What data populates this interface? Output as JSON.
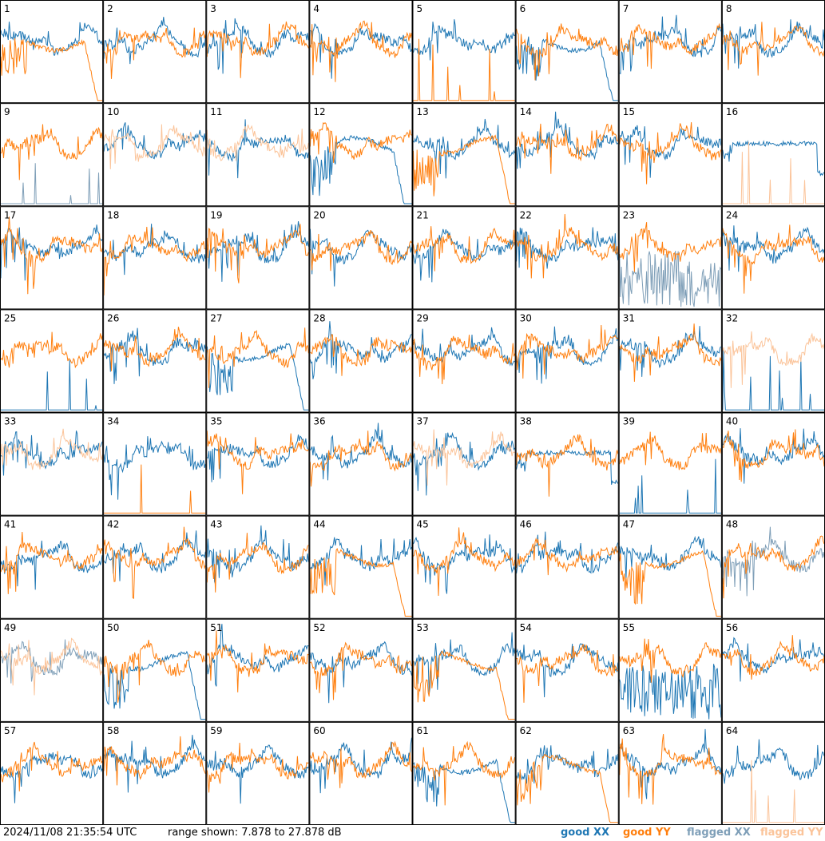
{
  "footer": {
    "timestamp": "2024/11/08 21:35:54 UTC",
    "range_text": "range shown: 7.878 to 27.878 dB"
  },
  "legend": {
    "good_xx": "good XX",
    "good_yy": "good YY",
    "flagged_xx": "flagged XX",
    "flagged_yy": "flagged YY"
  },
  "colors": {
    "good_xx": "#1f77b4",
    "good_yy": "#ff7f0e",
    "flagged_xx": "#7f9fb8",
    "flagged_yy": "#fbc49a",
    "grid": "#000000"
  },
  "chart_data": {
    "type": "line",
    "grid": "8x8 small multiples",
    "ylim": [
      7.878,
      27.878
    ],
    "tiles": [
      {
        "id": 1,
        "xx": "good",
        "yy": "good",
        "xx_shape": "normal",
        "yy_shape": "rolloff"
      },
      {
        "id": 2,
        "xx": "good",
        "yy": "good",
        "xx_shape": "normal",
        "yy_shape": "normal"
      },
      {
        "id": 3,
        "xx": "good",
        "yy": "good",
        "xx_shape": "normal",
        "yy_shape": "normal"
      },
      {
        "id": 4,
        "xx": "good",
        "yy": "good",
        "xx_shape": "normal",
        "yy_shape": "normal"
      },
      {
        "id": 5,
        "xx": "good",
        "yy": "good",
        "xx_shape": "normal",
        "yy_shape": "dead"
      },
      {
        "id": 6,
        "xx": "good",
        "yy": "good",
        "xx_shape": "rolloff",
        "yy_shape": "normal"
      },
      {
        "id": 7,
        "xx": "good",
        "yy": "good",
        "xx_shape": "normal",
        "yy_shape": "normal"
      },
      {
        "id": 8,
        "xx": "good",
        "yy": "good",
        "xx_shape": "normal",
        "yy_shape": "normal"
      },
      {
        "id": 9,
        "xx": "flagged",
        "yy": "good",
        "xx_shape": "dead",
        "yy_shape": "normal"
      },
      {
        "id": 10,
        "xx": "good",
        "yy": "flagged",
        "xx_shape": "normal",
        "yy_shape": "normal"
      },
      {
        "id": 11,
        "xx": "good",
        "yy": "flagged",
        "xx_shape": "normal",
        "yy_shape": "normal"
      },
      {
        "id": 12,
        "xx": "good",
        "yy": "good",
        "xx_shape": "rolloff",
        "yy_shape": "normal"
      },
      {
        "id": 13,
        "xx": "good",
        "yy": "good",
        "xx_shape": "normal",
        "yy_shape": "rolloff"
      },
      {
        "id": 14,
        "xx": "good",
        "yy": "good",
        "xx_shape": "normal",
        "yy_shape": "normal"
      },
      {
        "id": 15,
        "xx": "good",
        "yy": "good",
        "xx_shape": "normal",
        "yy_shape": "normal"
      },
      {
        "id": 16,
        "xx": "good",
        "yy": "flagged",
        "xx_shape": "flat",
        "yy_shape": "dead"
      },
      {
        "id": 17,
        "xx": "good",
        "yy": "good",
        "xx_shape": "normal",
        "yy_shape": "normal"
      },
      {
        "id": 18,
        "xx": "good",
        "yy": "good",
        "xx_shape": "normal",
        "yy_shape": "normal"
      },
      {
        "id": 19,
        "xx": "good",
        "yy": "good",
        "xx_shape": "normal",
        "yy_shape": "normal"
      },
      {
        "id": 20,
        "xx": "good",
        "yy": "good",
        "xx_shape": "normal",
        "yy_shape": "normal"
      },
      {
        "id": 21,
        "xx": "good",
        "yy": "good",
        "xx_shape": "normal",
        "yy_shape": "normal"
      },
      {
        "id": 22,
        "xx": "good",
        "yy": "good",
        "xx_shape": "normal",
        "yy_shape": "normal"
      },
      {
        "id": 23,
        "xx": "flagged",
        "yy": "good",
        "xx_shape": "noisy",
        "yy_shape": "normal"
      },
      {
        "id": 24,
        "xx": "good",
        "yy": "good",
        "xx_shape": "normal",
        "yy_shape": "normal"
      },
      {
        "id": 25,
        "xx": "good",
        "yy": "good",
        "xx_shape": "dead",
        "yy_shape": "normal"
      },
      {
        "id": 26,
        "xx": "good",
        "yy": "good",
        "xx_shape": "normal",
        "yy_shape": "normal"
      },
      {
        "id": 27,
        "xx": "good",
        "yy": "good",
        "xx_shape": "rolloff",
        "yy_shape": "normal"
      },
      {
        "id": 28,
        "xx": "good",
        "yy": "good",
        "xx_shape": "normal",
        "yy_shape": "normal"
      },
      {
        "id": 29,
        "xx": "good",
        "yy": "good",
        "xx_shape": "normal",
        "yy_shape": "normal"
      },
      {
        "id": 30,
        "xx": "good",
        "yy": "good",
        "xx_shape": "normal",
        "yy_shape": "normal"
      },
      {
        "id": 31,
        "xx": "good",
        "yy": "good",
        "xx_shape": "normal",
        "yy_shape": "normal"
      },
      {
        "id": 32,
        "xx": "good",
        "yy": "flagged",
        "xx_shape": "dead",
        "yy_shape": "normal"
      },
      {
        "id": 33,
        "xx": "good",
        "yy": "flagged",
        "xx_shape": "normal",
        "yy_shape": "normal"
      },
      {
        "id": 34,
        "xx": "good",
        "yy": "good",
        "xx_shape": "normal",
        "yy_shape": "dead"
      },
      {
        "id": 35,
        "xx": "good",
        "yy": "good",
        "xx_shape": "normal",
        "yy_shape": "normal"
      },
      {
        "id": 36,
        "xx": "good",
        "yy": "good",
        "xx_shape": "normal",
        "yy_shape": "normal"
      },
      {
        "id": 37,
        "xx": "good",
        "yy": "flagged",
        "xx_shape": "normal",
        "yy_shape": "normal"
      },
      {
        "id": 38,
        "xx": "good",
        "yy": "good",
        "xx_shape": "flat",
        "yy_shape": "normal"
      },
      {
        "id": 39,
        "xx": "good",
        "yy": "good",
        "xx_shape": "dead",
        "yy_shape": "normal"
      },
      {
        "id": 40,
        "xx": "good",
        "yy": "good",
        "xx_shape": "normal",
        "yy_shape": "normal"
      },
      {
        "id": 41,
        "xx": "good",
        "yy": "good",
        "xx_shape": "normal",
        "yy_shape": "normal"
      },
      {
        "id": 42,
        "xx": "good",
        "yy": "good",
        "xx_shape": "normal",
        "yy_shape": "normal"
      },
      {
        "id": 43,
        "xx": "good",
        "yy": "good",
        "xx_shape": "normal",
        "yy_shape": "normal"
      },
      {
        "id": 44,
        "xx": "good",
        "yy": "good",
        "xx_shape": "normal",
        "yy_shape": "rolloff"
      },
      {
        "id": 45,
        "xx": "good",
        "yy": "good",
        "xx_shape": "normal",
        "yy_shape": "normal"
      },
      {
        "id": 46,
        "xx": "good",
        "yy": "good",
        "xx_shape": "normal",
        "yy_shape": "normal"
      },
      {
        "id": 47,
        "xx": "good",
        "yy": "good",
        "xx_shape": "normal",
        "yy_shape": "rolloff"
      },
      {
        "id": 48,
        "xx": "flagged",
        "yy": "good",
        "xx_shape": "normal",
        "yy_shape": "normal"
      },
      {
        "id": 49,
        "xx": "flagged",
        "yy": "flagged",
        "xx_shape": "normal",
        "yy_shape": "normal"
      },
      {
        "id": 50,
        "xx": "good",
        "yy": "good",
        "xx_shape": "rolloff",
        "yy_shape": "normal"
      },
      {
        "id": 51,
        "xx": "good",
        "yy": "good",
        "xx_shape": "normal",
        "yy_shape": "normal"
      },
      {
        "id": 52,
        "xx": "good",
        "yy": "good",
        "xx_shape": "normal",
        "yy_shape": "normal"
      },
      {
        "id": 53,
        "xx": "good",
        "yy": "good",
        "xx_shape": "normal",
        "yy_shape": "rolloff"
      },
      {
        "id": 54,
        "xx": "good",
        "yy": "good",
        "xx_shape": "normal",
        "yy_shape": "normal"
      },
      {
        "id": 55,
        "xx": "good",
        "yy": "good",
        "xx_shape": "noisy",
        "yy_shape": "normal"
      },
      {
        "id": 56,
        "xx": "good",
        "yy": "good",
        "xx_shape": "normal",
        "yy_shape": "normal"
      },
      {
        "id": 57,
        "xx": "good",
        "yy": "good",
        "xx_shape": "normal",
        "yy_shape": "normal"
      },
      {
        "id": 58,
        "xx": "good",
        "yy": "good",
        "xx_shape": "normal",
        "yy_shape": "normal"
      },
      {
        "id": 59,
        "xx": "good",
        "yy": "good",
        "xx_shape": "normal",
        "yy_shape": "normal"
      },
      {
        "id": 60,
        "xx": "good",
        "yy": "good",
        "xx_shape": "normal",
        "yy_shape": "normal"
      },
      {
        "id": 61,
        "xx": "good",
        "yy": "good",
        "xx_shape": "rolloff",
        "yy_shape": "normal"
      },
      {
        "id": 62,
        "xx": "good",
        "yy": "good",
        "xx_shape": "normal",
        "yy_shape": "rolloff"
      },
      {
        "id": 63,
        "xx": "good",
        "yy": "good",
        "xx_shape": "normal",
        "yy_shape": "normal"
      },
      {
        "id": 64,
        "xx": "good",
        "yy": "flagged",
        "xx_shape": "normal",
        "yy_shape": "dead"
      }
    ]
  }
}
